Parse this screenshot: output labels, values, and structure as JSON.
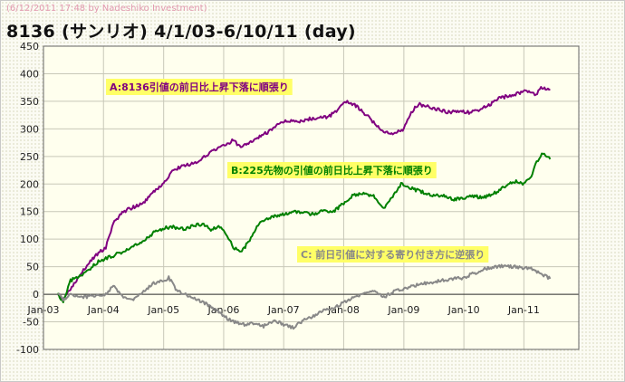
{
  "header": {
    "credit": "(6/12/2011 17:48 by Nadeshiko Investment)",
    "title": "8136 (サンリオ)  4/1/03-6/10/11 (day)"
  },
  "chart_data": {
    "type": "line",
    "x_ticks": [
      "Jan-03",
      "Jan-04",
      "Jan-05",
      "Jan-06",
      "Jan-07",
      "Jan-08",
      "Jan-09",
      "Jan-10",
      "Jan-11"
    ],
    "y_ticks": [
      -100,
      -50,
      0,
      50,
      100,
      150,
      200,
      250,
      300,
      350,
      400,
      450
    ],
    "ylim": [
      -100,
      450
    ],
    "xlim": [
      "2003-01-01",
      "2011-12-01"
    ],
    "grid": true,
    "series": [
      {
        "name": "A:8136引値の前日比上昇下落に順張り",
        "color": "#800080",
        "label_bg": "#ffff66",
        "label_color": "#800080",
        "points": [
          [
            "2003-04-01",
            0
          ],
          [
            "2003-05-01",
            -10
          ],
          [
            "2003-06-15",
            10
          ],
          [
            "2003-09-01",
            45
          ],
          [
            "2003-12-01",
            75
          ],
          [
            "2004-01-15",
            85
          ],
          [
            "2004-03-01",
            130
          ],
          [
            "2004-05-01",
            150
          ],
          [
            "2004-07-01",
            158
          ],
          [
            "2004-09-01",
            165
          ],
          [
            "2004-11-01",
            185
          ],
          [
            "2005-01-01",
            200
          ],
          [
            "2005-02-15",
            220
          ],
          [
            "2005-04-01",
            230
          ],
          [
            "2005-06-01",
            235
          ],
          [
            "2005-08-01",
            240
          ],
          [
            "2005-10-01",
            255
          ],
          [
            "2005-12-01",
            265
          ],
          [
            "2006-01-15",
            270
          ],
          [
            "2006-03-01",
            280
          ],
          [
            "2006-04-15",
            265
          ],
          [
            "2006-06-01",
            275
          ],
          [
            "2006-08-01",
            285
          ],
          [
            "2006-10-01",
            295
          ],
          [
            "2006-12-01",
            310
          ],
          [
            "2007-02-01",
            315
          ],
          [
            "2007-04-01",
            312
          ],
          [
            "2007-06-01",
            318
          ],
          [
            "2007-08-01",
            320
          ],
          [
            "2007-10-01",
            322
          ],
          [
            "2007-12-01",
            335
          ],
          [
            "2008-01-15",
            350
          ],
          [
            "2008-03-01",
            345
          ],
          [
            "2008-05-01",
            330
          ],
          [
            "2008-07-01",
            312
          ],
          [
            "2008-09-01",
            295
          ],
          [
            "2008-11-01",
            290
          ],
          [
            "2009-01-01",
            300
          ],
          [
            "2009-02-15",
            330
          ],
          [
            "2009-04-01",
            345
          ],
          [
            "2009-06-01",
            340
          ],
          [
            "2009-08-01",
            335
          ],
          [
            "2009-10-01",
            330
          ],
          [
            "2009-12-01",
            332
          ],
          [
            "2010-02-01",
            330
          ],
          [
            "2010-04-01",
            335
          ],
          [
            "2010-06-01",
            342
          ],
          [
            "2010-08-01",
            355
          ],
          [
            "2010-10-01",
            360
          ],
          [
            "2010-12-01",
            365
          ],
          [
            "2011-02-01",
            370
          ],
          [
            "2011-03-15",
            362
          ],
          [
            "2011-04-15",
            375
          ],
          [
            "2011-06-10",
            372
          ]
        ]
      },
      {
        "name": "B:225先物の引値の前日比上昇下落に順張り",
        "color": "#008000",
        "label_bg": "#ffff66",
        "label_color": "#008000",
        "points": [
          [
            "2003-04-01",
            0
          ],
          [
            "2003-05-01",
            -15
          ],
          [
            "2003-06-15",
            25
          ],
          [
            "2003-09-01",
            35
          ],
          [
            "2003-12-01",
            60
          ],
          [
            "2004-01-15",
            65
          ],
          [
            "2004-03-01",
            70
          ],
          [
            "2004-05-01",
            78
          ],
          [
            "2004-07-01",
            88
          ],
          [
            "2004-09-01",
            95
          ],
          [
            "2004-11-01",
            112
          ],
          [
            "2005-01-01",
            120
          ],
          [
            "2005-03-01",
            122
          ],
          [
            "2005-05-01",
            118
          ],
          [
            "2005-07-01",
            125
          ],
          [
            "2005-09-01",
            128
          ],
          [
            "2005-10-15",
            115
          ],
          [
            "2005-12-01",
            125
          ],
          [
            "2006-01-15",
            110
          ],
          [
            "2006-03-01",
            85
          ],
          [
            "2006-04-15",
            75
          ],
          [
            "2006-06-01",
            95
          ],
          [
            "2006-07-15",
            120
          ],
          [
            "2006-09-01",
            135
          ],
          [
            "2006-11-01",
            142
          ],
          [
            "2007-01-01",
            145
          ],
          [
            "2007-03-01",
            150
          ],
          [
            "2007-05-01",
            148
          ],
          [
            "2007-07-01",
            145
          ],
          [
            "2007-09-01",
            152
          ],
          [
            "2007-11-01",
            150
          ],
          [
            "2008-01-01",
            165
          ],
          [
            "2008-03-01",
            180
          ],
          [
            "2008-05-01",
            182
          ],
          [
            "2008-07-01",
            178
          ],
          [
            "2008-09-01",
            155
          ],
          [
            "2008-11-01",
            180
          ],
          [
            "2008-12-15",
            200
          ],
          [
            "2009-01-15",
            198
          ],
          [
            "2009-03-01",
            190
          ],
          [
            "2009-05-01",
            185
          ],
          [
            "2009-07-01",
            178
          ],
          [
            "2009-09-01",
            180
          ],
          [
            "2009-11-01",
            172
          ],
          [
            "2010-01-01",
            175
          ],
          [
            "2010-03-01",
            178
          ],
          [
            "2010-05-01",
            175
          ],
          [
            "2010-07-01",
            182
          ],
          [
            "2010-09-01",
            195
          ],
          [
            "2010-11-01",
            205
          ],
          [
            "2011-01-01",
            200
          ],
          [
            "2011-02-15",
            215
          ],
          [
            "2011-03-20",
            240
          ],
          [
            "2011-04-20",
            255
          ],
          [
            "2011-06-10",
            245
          ]
        ]
      },
      {
        "name": "C: 前日引値に対する寄り付き方に逆張り",
        "color": "#888888",
        "label_bg": "#ffff66",
        "label_color": "#888888",
        "points": [
          [
            "2003-04-01",
            0
          ],
          [
            "2003-05-01",
            -10
          ],
          [
            "2003-06-15",
            0
          ],
          [
            "2003-09-01",
            -5
          ],
          [
            "2003-12-01",
            -2
          ],
          [
            "2004-01-15",
            0
          ],
          [
            "2004-03-01",
            15
          ],
          [
            "2004-05-01",
            -5
          ],
          [
            "2004-07-01",
            -10
          ],
          [
            "2004-09-01",
            5
          ],
          [
            "2004-11-01",
            20
          ],
          [
            "2005-01-01",
            25
          ],
          [
            "2005-02-01",
            30
          ],
          [
            "2005-03-15",
            10
          ],
          [
            "2005-05-01",
            0
          ],
          [
            "2005-07-01",
            -5
          ],
          [
            "2005-09-01",
            -15
          ],
          [
            "2005-11-01",
            -25
          ],
          [
            "2006-01-01",
            -40
          ],
          [
            "2006-03-01",
            -50
          ],
          [
            "2006-05-01",
            -55
          ],
          [
            "2006-07-01",
            -52
          ],
          [
            "2006-09-01",
            -58
          ],
          [
            "2006-11-01",
            -48
          ],
          [
            "2007-01-01",
            -55
          ],
          [
            "2007-03-01",
            -60
          ],
          [
            "2007-05-01",
            -48
          ],
          [
            "2007-07-01",
            -40
          ],
          [
            "2007-09-01",
            -30
          ],
          [
            "2007-11-01",
            -25
          ],
          [
            "2008-01-01",
            -15
          ],
          [
            "2008-03-01",
            -5
          ],
          [
            "2008-05-01",
            0
          ],
          [
            "2008-07-01",
            5
          ],
          [
            "2008-09-01",
            -5
          ],
          [
            "2008-11-01",
            5
          ],
          [
            "2009-01-01",
            10
          ],
          [
            "2009-03-01",
            15
          ],
          [
            "2009-05-01",
            20
          ],
          [
            "2009-07-01",
            22
          ],
          [
            "2009-09-01",
            25
          ],
          [
            "2009-11-01",
            28
          ],
          [
            "2010-01-01",
            30
          ],
          [
            "2010-03-01",
            38
          ],
          [
            "2010-05-01",
            45
          ],
          [
            "2010-07-01",
            50
          ],
          [
            "2010-09-01",
            52
          ],
          [
            "2010-11-01",
            50
          ],
          [
            "2011-01-01",
            48
          ],
          [
            "2011-03-01",
            45
          ],
          [
            "2011-05-01",
            35
          ],
          [
            "2011-06-10",
            28
          ]
        ]
      }
    ]
  }
}
